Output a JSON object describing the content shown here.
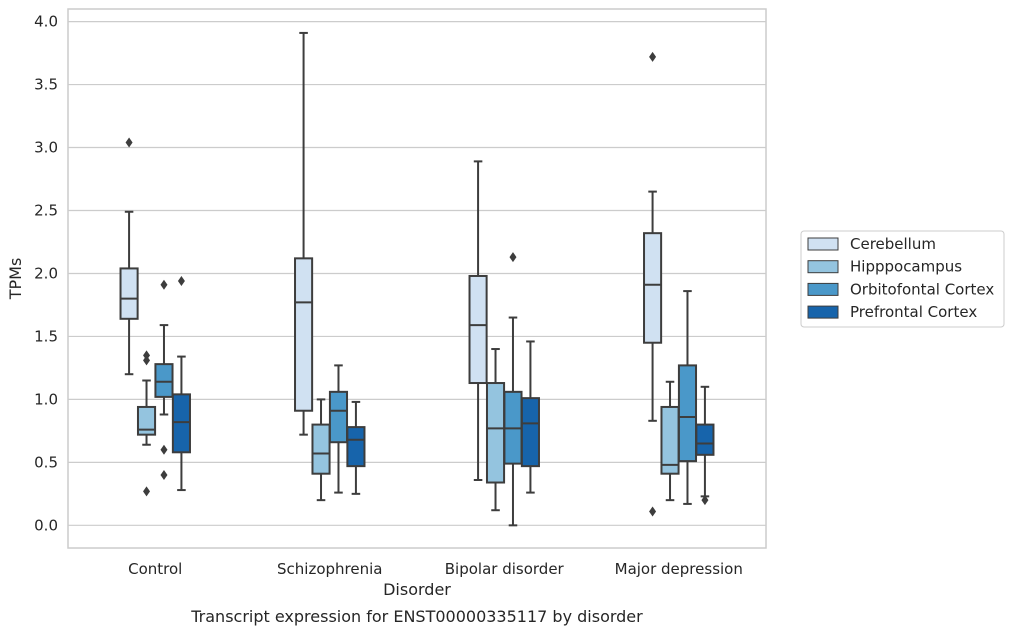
{
  "caption": "Transcript expression for ENST00000335117 by disorder",
  "chart_data": {
    "type": "box",
    "xlabel": "Disorder",
    "ylabel": "TPMs",
    "ylim": [
      -0.18,
      4.1
    ],
    "yticks": [
      "0.0",
      "0.5",
      "1.0",
      "1.5",
      "2.0",
      "2.5",
      "3.0",
      "3.5",
      "4.0"
    ],
    "grid": "horizontal",
    "legend_position": "right",
    "categories": [
      "Control",
      "Schizophrenia",
      "Bipolar disorder",
      "Major depression"
    ],
    "series": [
      {
        "name": "Cerebellum",
        "color": "#d0e1f2",
        "boxes": [
          {
            "whislo": 1.2,
            "q1": 1.64,
            "med": 1.8,
            "q3": 2.04,
            "whishi": 2.49,
            "fliers": [
              3.04
            ]
          },
          {
            "whislo": 0.72,
            "q1": 0.91,
            "med": 1.77,
            "q3": 2.12,
            "whishi": 3.91,
            "fliers": []
          },
          {
            "whislo": 0.36,
            "q1": 1.13,
            "med": 1.59,
            "q3": 1.98,
            "whishi": 2.89,
            "fliers": []
          },
          {
            "whislo": 0.83,
            "q1": 1.45,
            "med": 1.91,
            "q3": 2.32,
            "whishi": 2.65,
            "fliers": [
              3.72,
              0.11
            ]
          }
        ]
      },
      {
        "name": "Hipppocampus",
        "color": "#94c4df",
        "boxes": [
          {
            "whislo": 0.64,
            "q1": 0.72,
            "med": 0.76,
            "q3": 0.94,
            "whishi": 1.15,
            "fliers": [
              1.35,
              1.31,
              0.27
            ]
          },
          {
            "whislo": 0.2,
            "q1": 0.41,
            "med": 0.57,
            "q3": 0.8,
            "whishi": 1.0,
            "fliers": []
          },
          {
            "whislo": 0.12,
            "q1": 0.34,
            "med": 0.77,
            "q3": 1.13,
            "whishi": 1.4,
            "fliers": []
          },
          {
            "whislo": 0.2,
            "q1": 0.41,
            "med": 0.48,
            "q3": 0.94,
            "whishi": 1.14,
            "fliers": []
          }
        ]
      },
      {
        "name": "Orbitofontal Cortex",
        "color": "#4a98c9",
        "boxes": [
          {
            "whislo": 0.88,
            "q1": 1.02,
            "med": 1.14,
            "q3": 1.28,
            "whishi": 1.59,
            "fliers": [
              1.91,
              0.6,
              0.4
            ]
          },
          {
            "whislo": 0.26,
            "q1": 0.66,
            "med": 0.91,
            "q3": 1.06,
            "whishi": 1.27,
            "fliers": []
          },
          {
            "whislo": 0.0,
            "q1": 0.49,
            "med": 0.77,
            "q3": 1.06,
            "whishi": 1.65,
            "fliers": [
              2.13
            ]
          },
          {
            "whislo": 0.17,
            "q1": 0.51,
            "med": 0.86,
            "q3": 1.27,
            "whishi": 1.86,
            "fliers": []
          }
        ]
      },
      {
        "name": "Prefrontal Cortex",
        "color": "#1764ab",
        "boxes": [
          {
            "whislo": 0.28,
            "q1": 0.58,
            "med": 0.82,
            "q3": 1.04,
            "whishi": 1.34,
            "fliers": [
              1.94
            ]
          },
          {
            "whislo": 0.25,
            "q1": 0.47,
            "med": 0.68,
            "q3": 0.78,
            "whishi": 0.98,
            "fliers": []
          },
          {
            "whislo": 0.26,
            "q1": 0.47,
            "med": 0.81,
            "q3": 1.01,
            "whishi": 1.46,
            "fliers": []
          },
          {
            "whislo": 0.23,
            "q1": 0.56,
            "med": 0.65,
            "q3": 0.8,
            "whishi": 1.1,
            "fliers": [
              0.2
            ]
          }
        ]
      }
    ]
  }
}
